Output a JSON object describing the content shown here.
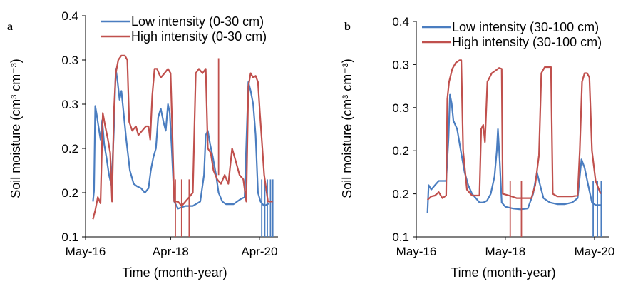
{
  "colors": {
    "low": "#4a7dc0",
    "high": "#c0504d",
    "axis": "#000000"
  },
  "chart_data": [
    {
      "panel": "a",
      "type": "line",
      "xlabel": "Time (month-year)",
      "ylabel_html": "Soil moisture (cm³ cm⁻³)",
      "x_tick_labels": [
        "May-16",
        "Apr-18",
        "Apr-20"
      ],
      "x_tick_dates": [
        "2016-05-01",
        "2018-04-01",
        "2020-04-01"
      ],
      "xlim": [
        "2016-05-01",
        "2020-09-01"
      ],
      "y_tick_labels": [
        "0.1",
        "0.2",
        "0.2",
        "0.3",
        "0.3",
        "0.4"
      ],
      "y_tick_values": [
        0.1,
        0.15,
        0.2,
        0.25,
        0.3,
        0.35
      ],
      "ylim": [
        0.1,
        0.35
      ],
      "legend": "top-right",
      "series": [
        {
          "name": "Low intensity (0-30 cm)",
          "color_key": "low",
          "points": [
            [
              "2016-07-01",
              0.14
            ],
            [
              "2016-07-10",
              0.152
            ],
            [
              "2016-07-20",
              0.248
            ],
            [
              "2016-08-01",
              0.238
            ],
            [
              "2016-08-15",
              0.225
            ],
            [
              "2016-09-01",
              0.21
            ],
            [
              "2016-09-15",
              0.232
            ],
            [
              "2016-10-01",
              0.205
            ],
            [
              "2016-10-20",
              0.19
            ],
            [
              "2016-11-10",
              0.17
            ],
            [
              "2016-12-01",
              0.158
            ],
            [
              "2016-12-20",
              0.22
            ],
            [
              "2017-01-05",
              0.29
            ],
            [
              "2017-01-20",
              0.275
            ],
            [
              "2017-02-05",
              0.255
            ],
            [
              "2017-02-20",
              0.265
            ],
            [
              "2017-03-10",
              0.24
            ],
            [
              "2017-04-01",
              0.21
            ],
            [
              "2017-05-01",
              0.175
            ],
            [
              "2017-06-01",
              0.16
            ],
            [
              "2017-07-01",
              0.157
            ],
            [
              "2017-08-01",
              0.155
            ],
            [
              "2017-09-01",
              0.15
            ],
            [
              "2017-10-01",
              0.155
            ],
            [
              "2017-10-20",
              0.175
            ],
            [
              "2017-11-10",
              0.19
            ],
            [
              "2017-12-01",
              0.2
            ],
            [
              "2017-12-20",
              0.235
            ],
            [
              "2018-01-10",
              0.245
            ],
            [
              "2018-02-01",
              0.23
            ],
            [
              "2018-02-20",
              0.22
            ],
            [
              "2018-03-10",
              0.25
            ],
            [
              "2018-03-25",
              0.24
            ],
            [
              "2018-04-10",
              0.2
            ],
            [
              "2018-05-01",
              0.14
            ],
            [
              "2018-06-01",
              0.132
            ],
            [
              "2018-08-01",
              0.135
            ],
            [
              "2018-10-01",
              0.135
            ],
            [
              "2018-12-01",
              0.14
            ],
            [
              "2019-01-01",
              0.17
            ],
            [
              "2019-01-15",
              0.215
            ],
            [
              "2019-02-01",
              0.22
            ],
            [
              "2019-02-20",
              0.205
            ],
            [
              "2019-03-15",
              0.19
            ],
            [
              "2019-04-10",
              0.17
            ],
            [
              "2019-05-01",
              0.15
            ],
            [
              "2019-06-01",
              0.14
            ],
            [
              "2019-07-01",
              0.137
            ],
            [
              "2019-08-01",
              0.137
            ],
            [
              "2019-09-01",
              0.137
            ],
            [
              "2019-10-01",
              0.14
            ],
            [
              "2019-11-01",
              0.143
            ],
            [
              "2019-12-01",
              0.145
            ],
            [
              "2020-01-01",
              0.275
            ],
            [
              "2020-01-20",
              0.265
            ],
            [
              "2020-02-10",
              0.25
            ],
            [
              "2020-03-01",
              0.215
            ],
            [
              "2020-03-20",
              0.15
            ],
            [
              "2020-04-10",
              0.14
            ],
            [
              "2020-05-10",
              0.135
            ],
            [
              "2020-06-20",
              0.138
            ]
          ],
          "drops": [
            "2020-04-20",
            "2020-05-15",
            "2020-06-05",
            "2020-07-01",
            "2020-07-20"
          ]
        },
        {
          "name": "High intensity (0-30 cm)",
          "color_key": "high",
          "points": [
            [
              "2016-07-01",
              0.12
            ],
            [
              "2016-07-20",
              0.13
            ],
            [
              "2016-08-10",
              0.145
            ],
            [
              "2016-09-01",
              0.138
            ],
            [
              "2016-09-20",
              0.24
            ],
            [
              "2016-10-10",
              0.225
            ],
            [
              "2016-11-01",
              0.21
            ],
            [
              "2016-11-20",
              0.195
            ],
            [
              "2016-12-05",
              0.14
            ],
            [
              "2016-12-20",
              0.24
            ],
            [
              "2017-01-05",
              0.285
            ],
            [
              "2017-01-25",
              0.3
            ],
            [
              "2017-02-20",
              0.305
            ],
            [
              "2017-03-20",
              0.305
            ],
            [
              "2017-04-10",
              0.3
            ],
            [
              "2017-04-25",
              0.23
            ],
            [
              "2017-05-20",
              0.22
            ],
            [
              "2017-06-20",
              0.225
            ],
            [
              "2017-07-10",
              0.215
            ],
            [
              "2017-08-10",
              0.22
            ],
            [
              "2017-09-10",
              0.225
            ],
            [
              "2017-10-01",
              0.225
            ],
            [
              "2017-10-15",
              0.21
            ],
            [
              "2017-11-01",
              0.26
            ],
            [
              "2017-11-20",
              0.29
            ],
            [
              "2017-12-10",
              0.29
            ],
            [
              "2018-01-10",
              0.28
            ],
            [
              "2018-02-10",
              0.285
            ],
            [
              "2018-03-10",
              0.29
            ],
            [
              "2018-04-01",
              0.285
            ],
            [
              "2018-04-15",
              0.22
            ],
            [
              "2018-05-01",
              0.14
            ],
            [
              "2018-06-01",
              0.14
            ],
            [
              "2018-07-01",
              0.135
            ],
            [
              "2018-08-01",
              0.14
            ],
            [
              "2018-09-01",
              0.145
            ],
            [
              "2018-10-01",
              0.15
            ],
            [
              "2018-10-25",
              0.285
            ],
            [
              "2018-11-20",
              0.29
            ],
            [
              "2018-12-20",
              0.285
            ],
            [
              "2019-01-15",
              0.29
            ],
            [
              "2019-02-01",
              0.2
            ],
            [
              "2019-02-25",
              0.195
            ],
            [
              "2019-03-20",
              0.175
            ],
            [
              "2019-04-20",
              0.165
            ],
            [
              "2019-05-20",
              0.16
            ],
            [
              "2019-06-20",
              0.17
            ],
            [
              "2019-07-20",
              0.16
            ],
            [
              "2019-08-20",
              0.2
            ],
            [
              "2019-09-20",
              0.185
            ],
            [
              "2019-10-20",
              0.17
            ],
            [
              "2019-11-20",
              0.165
            ],
            [
              "2019-12-15",
              0.14
            ],
            [
              "2020-01-01",
              0.27
            ],
            [
              "2020-01-20",
              0.285
            ],
            [
              "2020-02-10",
              0.28
            ],
            [
              "2020-03-01",
              0.282
            ],
            [
              "2020-03-20",
              0.275
            ],
            [
              "2020-04-05",
              0.24
            ],
            [
              "2020-04-20",
              0.21
            ],
            [
              "2020-05-10",
              0.17
            ],
            [
              "2020-06-10",
              0.14
            ],
            [
              "2020-07-01",
              0.14
            ],
            [
              "2020-07-20",
              0.14
            ]
          ],
          "drops": [
            "2018-05-10",
            "2018-07-01",
            "2018-09-01"
          ],
          "spikes": [
            [
              "2019-05-01",
              0.302
            ]
          ]
        }
      ]
    },
    {
      "panel": "b",
      "type": "line",
      "xlabel": "Time (month-year)",
      "ylabel_html": "Soil moisture (cm³ cm⁻³)",
      "x_tick_labels": [
        "May-16",
        "May-18",
        "May-20"
      ],
      "x_tick_dates": [
        "2016-05-01",
        "2018-05-01",
        "2020-05-01"
      ],
      "xlim": [
        "2016-05-01",
        "2020-09-01"
      ],
      "y_tick_labels": [
        "0.1",
        "0.2",
        "0.2",
        "0.3",
        "0.3",
        "0.4"
      ],
      "y_tick_values": [
        0.1,
        0.15,
        0.2,
        0.25,
        0.3,
        0.35
      ],
      "ylim": [
        0.1,
        0.35
      ],
      "legend": "top-right",
      "series": [
        {
          "name": "Low intensity (30-100 cm)",
          "color_key": "low",
          "points": [
            [
              "2016-08-01",
              0.128
            ],
            [
              "2016-08-10",
              0.16
            ],
            [
              "2016-09-01",
              0.155
            ],
            [
              "2016-10-01",
              0.16
            ],
            [
              "2016-11-01",
              0.165
            ],
            [
              "2016-12-01",
              0.165
            ],
            [
              "2017-01-01",
              0.165
            ],
            [
              "2017-01-20",
              0.215
            ],
            [
              "2017-02-01",
              0.265
            ],
            [
              "2017-02-15",
              0.255
            ],
            [
              "2017-03-01",
              0.235
            ],
            [
              "2017-04-01",
              0.225
            ],
            [
              "2017-05-01",
              0.2
            ],
            [
              "2017-06-01",
              0.175
            ],
            [
              "2017-07-01",
              0.16
            ],
            [
              "2017-08-01",
              0.15
            ],
            [
              "2017-09-01",
              0.145
            ],
            [
              "2017-10-01",
              0.14
            ],
            [
              "2017-11-01",
              0.14
            ],
            [
              "2017-12-01",
              0.142
            ],
            [
              "2018-01-01",
              0.15
            ],
            [
              "2018-02-01",
              0.17
            ],
            [
              "2018-02-20",
              0.2
            ],
            [
              "2018-03-01",
              0.225
            ],
            [
              "2018-03-15",
              0.19
            ],
            [
              "2018-04-01",
              0.14
            ],
            [
              "2018-05-01",
              0.135
            ],
            [
              "2018-07-01",
              0.133
            ],
            [
              "2018-09-01",
              0.132
            ],
            [
              "2018-11-01",
              0.133
            ],
            [
              "2018-12-15",
              0.15
            ],
            [
              "2019-01-15",
              0.175
            ],
            [
              "2019-02-10",
              0.16
            ],
            [
              "2019-03-10",
              0.145
            ],
            [
              "2019-05-01",
              0.14
            ],
            [
              "2019-07-01",
              0.138
            ],
            [
              "2019-09-01",
              0.138
            ],
            [
              "2019-11-01",
              0.14
            ],
            [
              "2019-12-15",
              0.145
            ],
            [
              "2020-01-15",
              0.19
            ],
            [
              "2020-02-10",
              0.18
            ],
            [
              "2020-03-10",
              0.16
            ],
            [
              "2020-04-10",
              0.14
            ],
            [
              "2020-05-10",
              0.137
            ],
            [
              "2020-06-20",
              0.137
            ]
          ],
          "drops": [
            "2020-04-20",
            "2020-05-25",
            "2020-06-25"
          ]
        },
        {
          "name": "High intensity (30-100 cm)",
          "color_key": "high",
          "points": [
            [
              "2016-08-01",
              0.143
            ],
            [
              "2016-09-01",
              0.147
            ],
            [
              "2016-10-01",
              0.148
            ],
            [
              "2016-11-01",
              0.152
            ],
            [
              "2016-12-01",
              0.145
            ],
            [
              "2017-01-01",
              0.148
            ],
            [
              "2017-01-10",
              0.26
            ],
            [
              "2017-01-25",
              0.28
            ],
            [
              "2017-02-20",
              0.295
            ],
            [
              "2017-03-20",
              0.302
            ],
            [
              "2017-04-20",
              0.305
            ],
            [
              "2017-05-05",
              0.305
            ],
            [
              "2017-05-20",
              0.2
            ],
            [
              "2017-06-20",
              0.155
            ],
            [
              "2017-08-01",
              0.148
            ],
            [
              "2017-09-01",
              0.148
            ],
            [
              "2017-10-01",
              0.148
            ],
            [
              "2017-10-15",
              0.225
            ],
            [
              "2017-11-01",
              0.23
            ],
            [
              "2017-11-15",
              0.21
            ],
            [
              "2017-12-05",
              0.28
            ],
            [
              "2018-01-10",
              0.29
            ],
            [
              "2018-02-10",
              0.293
            ],
            [
              "2018-03-10",
              0.296
            ],
            [
              "2018-04-01",
              0.295
            ],
            [
              "2018-04-10",
              0.15
            ],
            [
              "2018-06-01",
              0.148
            ],
            [
              "2018-08-01",
              0.145
            ],
            [
              "2018-10-01",
              0.145
            ],
            [
              "2018-12-01",
              0.145
            ],
            [
              "2019-01-01",
              0.16
            ],
            [
              "2019-02-01",
              0.195
            ],
            [
              "2019-02-20",
              0.29
            ],
            [
              "2019-03-20",
              0.297
            ],
            [
              "2019-04-20",
              0.297
            ],
            [
              "2019-05-10",
              0.297
            ],
            [
              "2019-05-25",
              0.15
            ],
            [
              "2019-07-01",
              0.147
            ],
            [
              "2019-09-01",
              0.147
            ],
            [
              "2019-11-01",
              0.147
            ],
            [
              "2019-12-15",
              0.148
            ],
            [
              "2020-01-01",
              0.2
            ],
            [
              "2020-01-20",
              0.28
            ],
            [
              "2020-02-10",
              0.29
            ],
            [
              "2020-03-01",
              0.29
            ],
            [
              "2020-03-20",
              0.285
            ],
            [
              "2020-04-10",
              0.2
            ],
            [
              "2020-05-10",
              0.165
            ],
            [
              "2020-06-20",
              0.15
            ]
          ],
          "drops": [
            "2018-06-10",
            "2018-09-10"
          ]
        }
      ]
    }
  ]
}
